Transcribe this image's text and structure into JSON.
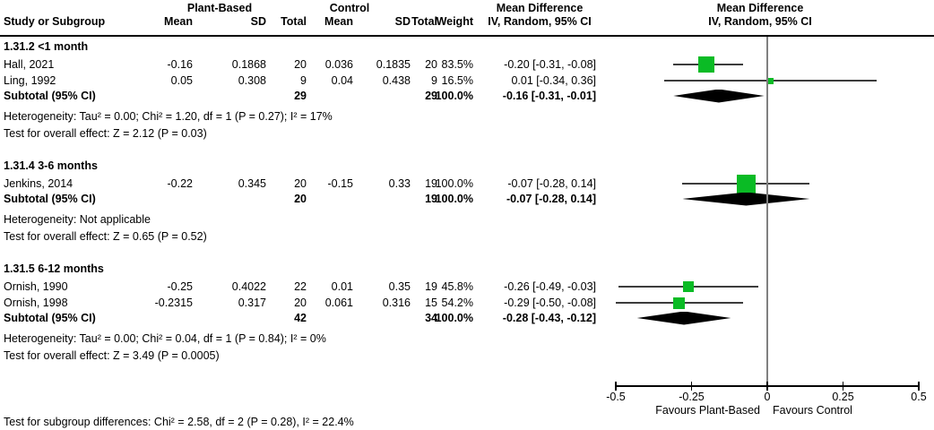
{
  "header": {
    "group1": "Plant-Based",
    "group2": "Control",
    "study": "Study or Subgroup",
    "mean": "Mean",
    "sd": "SD",
    "total": "Total",
    "weight": "Weight",
    "md_title": "Mean Difference",
    "md_sub": "IV, Random, 95% CI"
  },
  "chart_data": {
    "type": "forest",
    "effect_measure": "Mean Difference",
    "method": "IV, Random, 95% CI",
    "marker_color": "#0abb25",
    "axis": {
      "min": -0.5,
      "max": 0.5,
      "ticks": [
        {
          "value": -0.5,
          "label": "-0.5"
        },
        {
          "value": -0.25,
          "label": "-0.25"
        },
        {
          "value": 0,
          "label": "0"
        },
        {
          "value": 0.25,
          "label": "0.25"
        },
        {
          "value": 0.5,
          "label": "0.5"
        }
      ],
      "favours_left": "Favours Plant-Based",
      "favours_right": "Favours Control"
    },
    "subgroups": [
      {
        "label": "1.31.2 <1 month",
        "studies": [
          {
            "study": "Hall, 2021",
            "mean1": "-0.16",
            "sd1": "0.1868",
            "total1": "20",
            "mean2": "0.036",
            "sd2": "0.1835",
            "total2": "20",
            "weight": "83.5%",
            "ci": "-0.20 [-0.31, -0.08]",
            "est": -0.2,
            "lo": -0.31,
            "hi": -0.08,
            "weight_pct": 83.5
          },
          {
            "study": "Ling, 1992",
            "mean1": "0.05",
            "sd1": "0.308",
            "total1": "9",
            "mean2": "0.04",
            "sd2": "0.438",
            "total2": "9",
            "weight": "16.5%",
            "ci": "0.01 [-0.34, 0.36]",
            "est": 0.01,
            "lo": -0.34,
            "hi": 0.36,
            "weight_pct": 16.5
          }
        ],
        "subtotal": {
          "label": "Subtotal (95% CI)",
          "total1": "29",
          "total2": "29",
          "weight": "100.0%",
          "ci": "-0.16 [-0.31, -0.01]",
          "est": -0.16,
          "lo": -0.31,
          "hi": -0.01
        },
        "heterogeneity": "Heterogeneity: Tau² = 0.00; Chi² = 1.20, df = 1 (P = 0.27); I² = 17%",
        "overall_effect": "Test for overall effect: Z = 2.12 (P = 0.03)"
      },
      {
        "label": "1.31.4 3-6 months",
        "studies": [
          {
            "study": "Jenkins, 2014",
            "mean1": "-0.22",
            "sd1": "0.345",
            "total1": "20",
            "mean2": "-0.15",
            "sd2": "0.33",
            "total2": "19",
            "weight": "100.0%",
            "ci": "-0.07 [-0.28, 0.14]",
            "est": -0.07,
            "lo": -0.28,
            "hi": 0.14,
            "weight_pct": 100.0
          }
        ],
        "subtotal": {
          "label": "Subtotal (95% CI)",
          "total1": "20",
          "total2": "19",
          "weight": "100.0%",
          "ci": "-0.07 [-0.28, 0.14]",
          "est": -0.07,
          "lo": -0.28,
          "hi": 0.14
        },
        "heterogeneity": "Heterogeneity: Not applicable",
        "overall_effect": "Test for overall effect: Z = 0.65 (P = 0.52)"
      },
      {
        "label": "1.31.5 6-12 months",
        "studies": [
          {
            "study": "Ornish, 1990",
            "mean1": "-0.25",
            "sd1": "0.4022",
            "total1": "22",
            "mean2": "0.01",
            "sd2": "0.35",
            "total2": "19",
            "weight": "45.8%",
            "ci": "-0.26 [-0.49, -0.03]",
            "est": -0.26,
            "lo": -0.49,
            "hi": -0.03,
            "weight_pct": 45.8
          },
          {
            "study": "Ornish, 1998",
            "mean1": "-0.2315",
            "sd1": "0.317",
            "total1": "20",
            "mean2": "0.061",
            "sd2": "0.316",
            "total2": "15",
            "weight": "54.2%",
            "ci": "-0.29 [-0.50, -0.08]",
            "est": -0.29,
            "lo": -0.5,
            "hi": -0.08,
            "weight_pct": 54.2
          }
        ],
        "subtotal": {
          "label": "Subtotal (95% CI)",
          "total1": "42",
          "total2": "34",
          "weight": "100.0%",
          "ci": "-0.28 [-0.43, -0.12]",
          "est": -0.28,
          "lo": -0.43,
          "hi": -0.12
        },
        "heterogeneity": "Heterogeneity: Tau² = 0.00; Chi² = 0.04, df = 1 (P = 0.84); I² = 0%",
        "overall_effect": "Test for overall effect: Z = 3.49 (P = 0.0005)"
      }
    ],
    "footer": "Test for subgroup differences: Chi² = 2.58, df = 2 (P = 0.28), I² = 22.4%"
  }
}
